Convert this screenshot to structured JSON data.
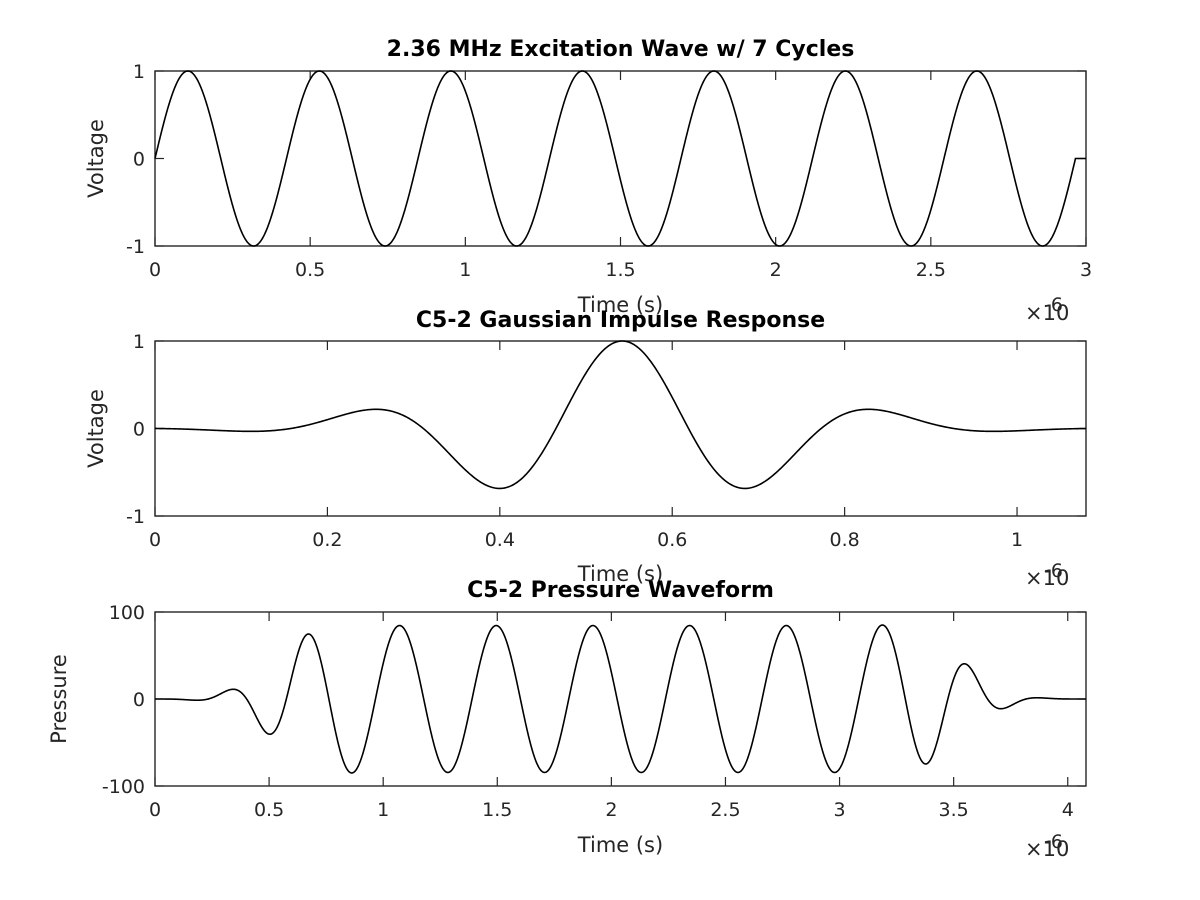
{
  "chart_data": [
    {
      "type": "line",
      "title": "2.36 MHz Excitation Wave w/ 7 Cycles",
      "xlabel": "Time (s)",
      "ylabel": "Voltage",
      "x_exponent": "×10",
      "x_exponent_power": "-6",
      "xlim": [
        0,
        3
      ],
      "ylim": [
        -1,
        1
      ],
      "xticks": [
        0,
        0.5,
        1,
        1.5,
        2,
        2.5,
        3
      ],
      "xtick_labels": [
        "0",
        "0.5",
        "1",
        "1.5",
        "2",
        "2.5",
        "3"
      ],
      "yticks": [
        -1,
        0,
        1
      ],
      "ytick_labels": [
        "-1",
        "0",
        "1"
      ],
      "grid": false,
      "series": [
        {
          "model": "sine_burst",
          "frequency_mhz": 2.36,
          "cycles": 7,
          "amplitude": 1,
          "x_end": 2.966,
          "tail_to": 3,
          "color": "#000000"
        }
      ]
    },
    {
      "type": "line",
      "title": "C5-2 Gaussian Impulse Response",
      "xlabel": "Time (s)",
      "ylabel": "Voltage",
      "x_exponent": "×10",
      "x_exponent_power": "-6",
      "xlim": [
        0,
        1.08
      ],
      "ylim": [
        -1,
        1
      ],
      "xticks": [
        0,
        0.2,
        0.4,
        0.6,
        0.8,
        1
      ],
      "xtick_labels": [
        "0",
        "0.2",
        "0.4",
        "0.6",
        "0.8",
        "1"
      ],
      "yticks": [
        -1,
        0,
        1
      ],
      "ytick_labels": [
        "-1",
        "0",
        "1"
      ],
      "grid": false,
      "series": [
        {
          "model": "gaussian_pulse",
          "center": 0.542,
          "frequency_mhz": 3.25,
          "sigma": 0.17,
          "amplitude": 1,
          "color": "#000000"
        }
      ]
    },
    {
      "type": "line",
      "title": "C5-2 Pressure Waveform",
      "xlabel": "Time (s)",
      "ylabel": "Pressure",
      "x_exponent": "×10",
      "x_exponent_power": "-6",
      "xlim": [
        0,
        4.08
      ],
      "ylim": [
        -100,
        100
      ],
      "xticks": [
        0,
        0.5,
        1,
        1.5,
        2,
        2.5,
        3,
        3.5,
        4
      ],
      "xtick_labels": [
        "0",
        "0.5",
        "1",
        "1.5",
        "2",
        "2.5",
        "3",
        "3.5",
        "4"
      ],
      "yticks": [
        -100,
        0,
        100
      ],
      "ytick_labels": [
        "-100",
        "0",
        "100"
      ],
      "grid": false,
      "series": [
        {
          "model": "convolution",
          "description_values": {
            "peaks": [
              [
                0.33,
                9
              ],
              [
                0.68,
                69
              ],
              [
                1.08,
                84
              ],
              [
                1.51,
                85
              ],
              [
                1.93,
                85
              ],
              [
                2.36,
                85
              ],
              [
                2.79,
                85
              ],
              [
                3.22,
                84
              ],
              [
                3.6,
                35
              ]
            ],
            "troughs": [
              [
                0.49,
                -35
              ],
              [
                0.87,
                -83
              ],
              [
                1.29,
                -84
              ],
              [
                1.72,
                -84
              ],
              [
                2.15,
                -84
              ],
              [
                2.58,
                -84
              ],
              [
                3.0,
                -83
              ],
              [
                3.42,
                -69
              ],
              [
                3.77,
                -9
              ]
            ]
          },
          "peak_amplitude": 85,
          "color": "#000000"
        }
      ]
    }
  ]
}
